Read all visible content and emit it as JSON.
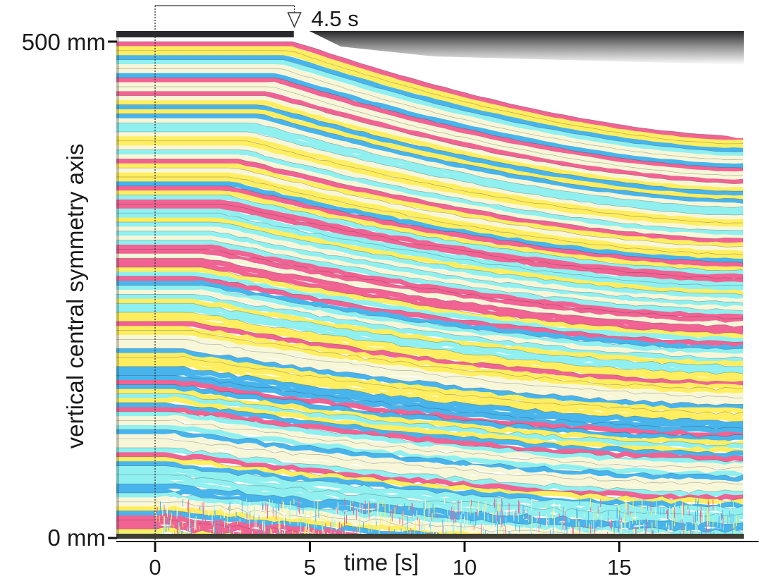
{
  "chart_data": {
    "type": "heatmap",
    "title": "",
    "xlabel": "time [s]",
    "ylabel": "vertical central symmetry axis",
    "x_ticks": [
      "0",
      "5",
      "10",
      "15"
    ],
    "x_tick_values": [
      0,
      5,
      10,
      15
    ],
    "y_ticks": [
      "500 mm",
      "0 mm"
    ],
    "y_tick_values": [
      500,
      0
    ],
    "xlim": [
      -0.1,
      18.8
    ],
    "ylim": [
      0,
      500
    ],
    "annotation": {
      "text": "4.5 s",
      "x": 4.5,
      "marker": "open-arrow-down"
    },
    "reference_line_x": 0,
    "surface_height_mm": [
      {
        "t": 4.3,
        "h": 500
      },
      {
        "t": 18.8,
        "h": 400
      }
    ],
    "band_colors": [
      "#f06393",
      "#ffee60",
      "#48b4ec",
      "#8ff0ef",
      "#f7f7d8"
    ],
    "grid": false,
    "legend": "none"
  }
}
